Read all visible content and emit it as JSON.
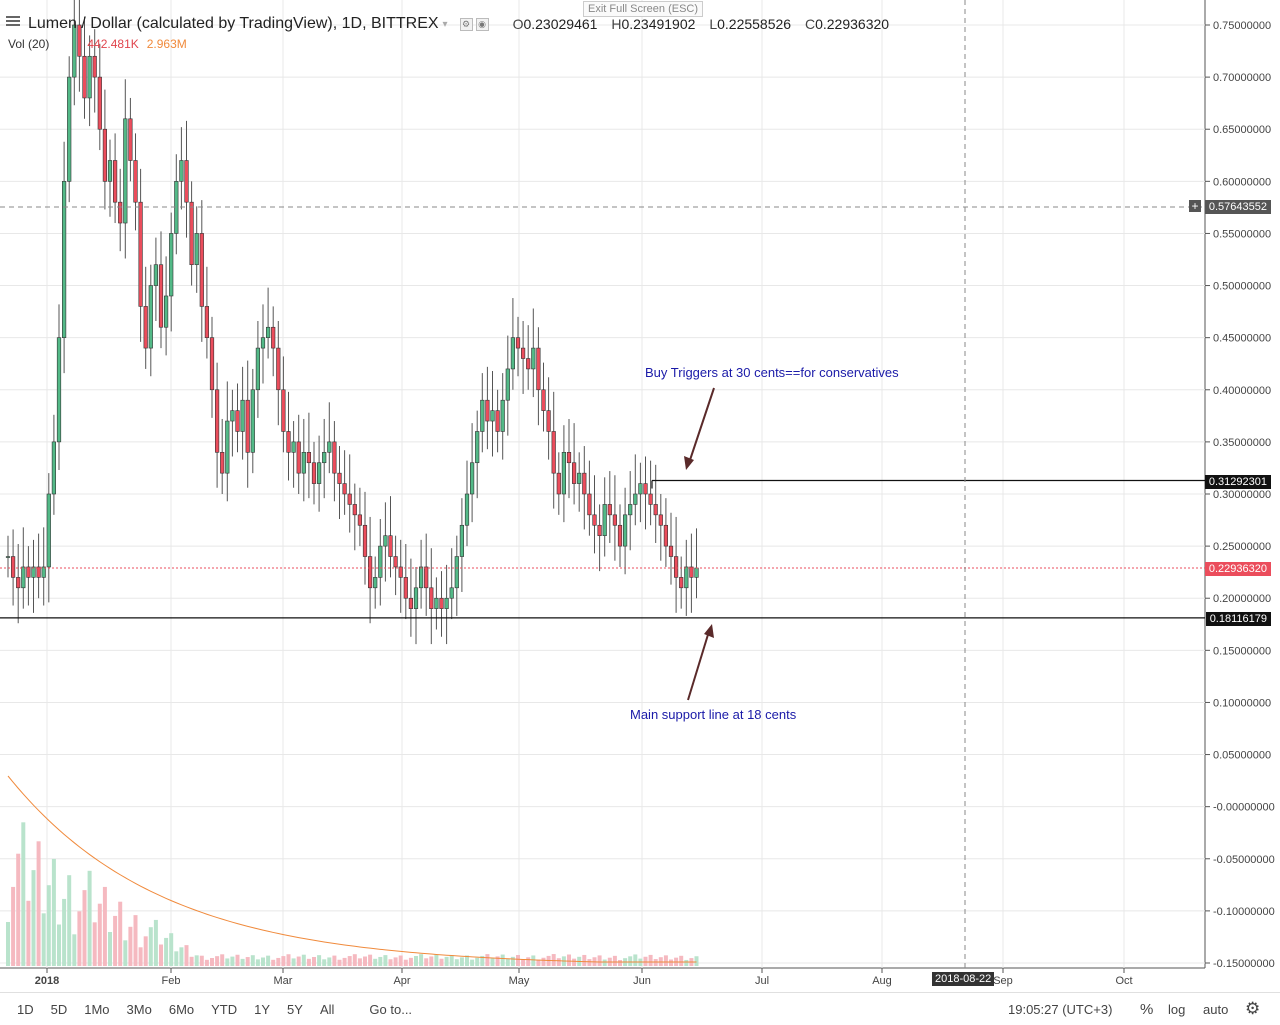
{
  "header": {
    "title": "Lumen / Dollar (calculated by TradingView), 1D, BITTREX",
    "open_label": "O",
    "open": "0.23029461",
    "high_label": "H",
    "high": "0.23491902",
    "low_label": "L",
    "low": "0.22558526",
    "close_label": "C",
    "close": "0.22936320"
  },
  "exit_fullscreen": "Exit Full Screen (ESC)",
  "volume": {
    "label": "Vol (20)",
    "value": "442.481K",
    "ma": "2.963M"
  },
  "price_labels": {
    "crosshair": "0.57643552",
    "resistance": "0.31292301",
    "last": "0.22936320",
    "support": "0.18116179"
  },
  "annotations": {
    "buy": "Buy Triggers at 30 cents==for conservatives",
    "support": "Main support line at 18 cents"
  },
  "date_flag": "2018-08-22",
  "toolbar": {
    "ranges": [
      "1D",
      "5D",
      "1Mo",
      "3Mo",
      "6Mo",
      "YTD",
      "1Y",
      "5Y",
      "All"
    ],
    "goto": "Go to...",
    "clock": "19:05:27 (UTC+3)",
    "percent": "%",
    "log": "log",
    "auto": "auto"
  },
  "colors": {
    "up": "#53b987",
    "down": "#eb4d5c",
    "annotation": "#1a1aa8",
    "volume_ma": "#f08a3c"
  },
  "chart_data": {
    "type": "candlestick",
    "title": "Lumen / Dollar (calculated by TradingView), 1D, BITTREX",
    "x_ticks": [
      "2018",
      "Feb",
      "Mar",
      "Apr",
      "May",
      "Jun",
      "Jul",
      "Aug",
      "Sep",
      "Oct"
    ],
    "y_ticks": [
      "0.75000000",
      "0.70000000",
      "0.65000000",
      "0.60000000",
      "0.55000000",
      "0.50000000",
      "0.45000000",
      "0.40000000",
      "0.35000000",
      "0.30000000",
      "0.25000000",
      "0.20000000",
      "0.15000000",
      "0.10000000",
      "0.05000000",
      "-0.00000000",
      "-0.05000000",
      "-0.10000000",
      "-0.15000000"
    ],
    "ylim": [
      -0.15,
      0.77
    ],
    "grid": true,
    "horizontal_lines": [
      0.31292301,
      0.18116179
    ],
    "candles_close": [
      0.24,
      0.22,
      0.21,
      0.23,
      0.22,
      0.23,
      0.22,
      0.23,
      0.3,
      0.35,
      0.45,
      0.6,
      0.7,
      0.75,
      0.72,
      0.68,
      0.72,
      0.7,
      0.65,
      0.6,
      0.62,
      0.58,
      0.56,
      0.66,
      0.62,
      0.58,
      0.48,
      0.44,
      0.5,
      0.52,
      0.46,
      0.49,
      0.55,
      0.6,
      0.62,
      0.58,
      0.52,
      0.55,
      0.48,
      0.45,
      0.4,
      0.34,
      0.32,
      0.37,
      0.38,
      0.36,
      0.39,
      0.34,
      0.4,
      0.44,
      0.45,
      0.46,
      0.44,
      0.4,
      0.36,
      0.34,
      0.35,
      0.32,
      0.34,
      0.33,
      0.31,
      0.33,
      0.34,
      0.35,
      0.32,
      0.31,
      0.3,
      0.29,
      0.28,
      0.27,
      0.24,
      0.21,
      0.22,
      0.25,
      0.26,
      0.24,
      0.23,
      0.22,
      0.2,
      0.19,
      0.21,
      0.23,
      0.21,
      0.19,
      0.2,
      0.19,
      0.2,
      0.21,
      0.24,
      0.27,
      0.3,
      0.33,
      0.36,
      0.39,
      0.37,
      0.38,
      0.36,
      0.39,
      0.42,
      0.45,
      0.44,
      0.43,
      0.42,
      0.44,
      0.4,
      0.38,
      0.36,
      0.32,
      0.3,
      0.34,
      0.33,
      0.31,
      0.32,
      0.3,
      0.28,
      0.27,
      0.26,
      0.29,
      0.28,
      0.27,
      0.25,
      0.28,
      0.29,
      0.3,
      0.31,
      0.3,
      0.29,
      0.28,
      0.27,
      0.25,
      0.24,
      0.22,
      0.21,
      0.23,
      0.22,
      0.229
    ]
  }
}
